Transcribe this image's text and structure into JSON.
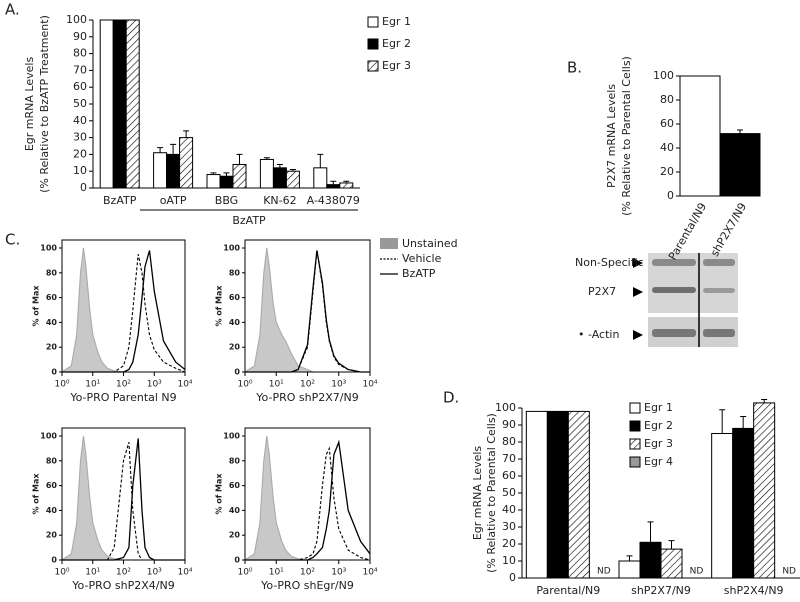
{
  "chart_data": [
    {
      "type": "bar",
      "panel": "A.",
      "ylabel": [
        "Egr mRNA Levels",
        "(% Relative to BzATP Treatment)"
      ],
      "categories": [
        "BzATP",
        "oATP",
        "BBG",
        "KN-62",
        "A-438079"
      ],
      "group_label": "BzATP",
      "series": [
        {
          "name": "Egr 1",
          "color": "#ffffff",
          "values": [
            100,
            21,
            8,
            17,
            12
          ],
          "errors": [
            0,
            3,
            1,
            1,
            8
          ]
        },
        {
          "name": "Egr 2",
          "color": "#000000",
          "values": [
            100,
            20,
            7,
            12,
            2
          ],
          "errors": [
            0,
            6,
            2,
            2,
            2
          ]
        },
        {
          "name": "Egr 3",
          "color": "#ffffff",
          "hatch": true,
          "values": [
            100,
            30,
            14,
            10,
            3
          ],
          "errors": [
            0,
            4,
            6,
            1,
            1
          ]
        }
      ],
      "ylim": [
        0,
        100
      ],
      "yticks": [
        0,
        10,
        20,
        30,
        40,
        50,
        60,
        70,
        80,
        90,
        100
      ]
    },
    {
      "type": "bar",
      "panel": "B.",
      "ylabel": [
        "P2X7 mRNA Levels",
        "(% Relative to Parental Cells)"
      ],
      "categories": [
        "Parental/N9",
        "shP2X7/N9"
      ],
      "values": [
        100,
        52
      ],
      "errors": [
        0,
        3
      ],
      "colors": [
        "#ffffff",
        "#000000"
      ],
      "ylim": [
        0,
        100
      ],
      "yticks": [
        0,
        20,
        40,
        60,
        80,
        100
      ]
    },
    {
      "type": "flow",
      "panel": "C.",
      "xlabel": "Yo-PRO Parental N9",
      "ylabel": "% of Max",
      "xscale": "log",
      "x": [
        1,
        2,
        3,
        4,
        5,
        6,
        8,
        10,
        15,
        20,
        30,
        50,
        100,
        150,
        200,
        300,
        400,
        500,
        700,
        1000,
        2000,
        5000,
        10000
      ],
      "series": [
        {
          "name": "Unstained",
          "color": "#c8c8c8",
          "style": "fill",
          "values": [
            0,
            5,
            30,
            80,
            100,
            85,
            50,
            30,
            15,
            8,
            3,
            1,
            0,
            0,
            0,
            0,
            0,
            0,
            0,
            0,
            0,
            0,
            0
          ]
        },
        {
          "name": "Vehicle",
          "color": "#000000",
          "style": "dashed",
          "values": [
            0,
            0,
            0,
            0,
            0,
            0,
            0,
            0,
            0,
            0,
            0,
            0,
            5,
            20,
            50,
            95,
            80,
            55,
            30,
            18,
            8,
            3,
            0
          ]
        },
        {
          "name": "BzATP",
          "color": "#000000",
          "style": "solid",
          "values": [
            0,
            0,
            0,
            0,
            0,
            0,
            0,
            0,
            0,
            0,
            0,
            0,
            0,
            2,
            8,
            30,
            60,
            85,
            98,
            65,
            25,
            8,
            2
          ]
        }
      ],
      "xlim": [
        1,
        10000
      ],
      "xticks": [
        {
          "value": 1,
          "label": "10⁰"
        },
        {
          "value": 10,
          "label": "10¹"
        },
        {
          "value": 100,
          "label": "10²"
        },
        {
          "value": 1000,
          "label": "10³"
        },
        {
          "value": 10000,
          "label": "10⁴"
        }
      ],
      "ylim": [
        0,
        100
      ],
      "yticks": [
        0,
        20,
        40,
        60,
        80,
        100
      ]
    },
    {
      "type": "flow",
      "xlabel": "Yo-PRO shP2X7/N9",
      "ylabel": "% of Max",
      "xscale": "log",
      "x": [
        1,
        2,
        3,
        4,
        5,
        6,
        8,
        10,
        15,
        20,
        30,
        50,
        100,
        150,
        200,
        300,
        400,
        500,
        700,
        1000,
        2000,
        5000,
        10000
      ],
      "series": [
        {
          "name": "Unstained",
          "color": "#c8c8c8",
          "style": "fill",
          "values": [
            0,
            5,
            30,
            80,
            100,
            85,
            55,
            40,
            30,
            25,
            15,
            5,
            2,
            0,
            0,
            0,
            0,
            0,
            0,
            0,
            0,
            0,
            0
          ]
        },
        {
          "name": "Vehicle",
          "color": "#000000",
          "style": "dashed",
          "values": [
            0,
            0,
            0,
            0,
            0,
            0,
            0,
            0,
            0,
            0,
            0,
            2,
            20,
            65,
            98,
            70,
            40,
            25,
            12,
            6,
            2,
            0,
            0
          ]
        },
        {
          "name": "BzATP",
          "color": "#000000",
          "style": "solid",
          "values": [
            0,
            0,
            0,
            0,
            0,
            0,
            0,
            0,
            0,
            0,
            0,
            2,
            22,
            68,
            98,
            72,
            42,
            26,
            13,
            7,
            2,
            0,
            0
          ]
        }
      ],
      "xlim": [
        1,
        10000
      ],
      "xticks": [
        {
          "value": 1,
          "label": "10⁰"
        },
        {
          "value": 10,
          "label": "10¹"
        },
        {
          "value": 100,
          "label": "10²"
        },
        {
          "value": 1000,
          "label": "10³"
        },
        {
          "value": 10000,
          "label": "10⁴"
        }
      ],
      "ylim": [
        0,
        100
      ],
      "yticks": [
        0,
        20,
        40,
        60,
        80,
        100
      ]
    },
    {
      "type": "flow",
      "xlabel": "Yo-PRO shP2X4/N9",
      "ylabel": "% of Max",
      "xscale": "log",
      "x": [
        1,
        2,
        3,
        4,
        5,
        6,
        8,
        10,
        15,
        20,
        30,
        50,
        100,
        150,
        200,
        300,
        400,
        500,
        700,
        1000,
        2000,
        5000,
        10000
      ],
      "series": [
        {
          "name": "Unstained",
          "color": "#c8c8c8",
          "style": "fill",
          "values": [
            0,
            5,
            30,
            80,
            100,
            85,
            50,
            30,
            15,
            8,
            3,
            1,
            0,
            0,
            0,
            0,
            0,
            0,
            0,
            0,
            0,
            0,
            0
          ]
        },
        {
          "name": "Vehicle",
          "color": "#000000",
          "style": "dashed",
          "values": [
            0,
            0,
            0,
            0,
            0,
            0,
            0,
            0,
            0,
            0,
            0,
            10,
            80,
            95,
            40,
            5,
            0,
            0,
            0,
            0,
            0,
            0,
            0
          ]
        },
        {
          "name": "BzATP",
          "color": "#000000",
          "style": "solid",
          "values": [
            0,
            0,
            0,
            0,
            0,
            0,
            0,
            0,
            0,
            0,
            0,
            0,
            2,
            10,
            60,
            98,
            40,
            10,
            2,
            0,
            0,
            0,
            0
          ]
        }
      ],
      "xlim": [
        1,
        10000
      ],
      "xticks": [
        {
          "value": 1,
          "label": "10⁰"
        },
        {
          "value": 10,
          "label": "10¹"
        },
        {
          "value": 100,
          "label": "10²"
        },
        {
          "value": 1000,
          "label": "10³"
        },
        {
          "value": 10000,
          "label": "10⁴"
        }
      ],
      "ylim": [
        0,
        100
      ],
      "yticks": [
        0,
        20,
        40,
        60,
        80,
        100
      ]
    },
    {
      "type": "flow",
      "xlabel": "Yo-PRO shEgr/N9",
      "ylabel": "% of Max",
      "xscale": "log",
      "x": [
        1,
        2,
        3,
        4,
        5,
        6,
        8,
        10,
        15,
        20,
        30,
        50,
        100,
        150,
        200,
        300,
        400,
        500,
        700,
        1000,
        2000,
        5000,
        10000
      ],
      "series": [
        {
          "name": "Unstained",
          "color": "#c8c8c8",
          "style": "fill",
          "values": [
            0,
            5,
            30,
            80,
            100,
            85,
            50,
            30,
            15,
            8,
            3,
            1,
            0,
            0,
            0,
            0,
            0,
            0,
            0,
            0,
            0,
            0,
            0
          ]
        },
        {
          "name": "Vehicle",
          "color": "#000000",
          "style": "dashed",
          "values": [
            0,
            0,
            0,
            0,
            0,
            0,
            0,
            0,
            0,
            0,
            0,
            0,
            2,
            5,
            15,
            60,
            85,
            90,
            50,
            25,
            8,
            2,
            0
          ]
        },
        {
          "name": "BzATP",
          "color": "#000000",
          "style": "solid",
          "values": [
            0,
            0,
            0,
            0,
            0,
            0,
            0,
            0,
            0,
            0,
            0,
            0,
            0,
            2,
            5,
            10,
            25,
            40,
            85,
            95,
            40,
            15,
            5
          ]
        }
      ],
      "xlim": [
        1,
        10000
      ],
      "xticks": [
        {
          "value": 1,
          "label": "10⁰"
        },
        {
          "value": 10,
          "label": "10¹"
        },
        {
          "value": 100,
          "label": "10²"
        },
        {
          "value": 1000,
          "label": "10³"
        },
        {
          "value": 10000,
          "label": "10⁴"
        }
      ],
      "ylim": [
        0,
        100
      ],
      "yticks": [
        0,
        20,
        40,
        60,
        80,
        100
      ]
    },
    {
      "type": "bar",
      "panel": "D.",
      "ylabel": [
        "Egr mRNA Levels",
        "(% Relative to Parental Cells)"
      ],
      "categories": [
        "Parental/N9",
        "shP2X7/N9",
        "shP2X4/N9"
      ],
      "nd_labels": [
        "ND",
        "ND",
        "ND"
      ],
      "series": [
        {
          "name": "Egr 1",
          "color": "#ffffff",
          "values": [
            98,
            10,
            85
          ],
          "errors": [
            0,
            3,
            14
          ]
        },
        {
          "name": "Egr 2",
          "color": "#000000",
          "values": [
            98,
            21,
            88
          ],
          "errors": [
            0,
            12,
            7
          ]
        },
        {
          "name": "Egr 3",
          "color": "#ffffff",
          "hatch": true,
          "values": [
            98,
            17,
            103
          ],
          "errors": [
            0,
            5,
            2
          ]
        },
        {
          "name": "Egr 4",
          "color": "#999999",
          "values": [
            null,
            null,
            null
          ]
        }
      ],
      "ylim": [
        0,
        100
      ],
      "yticks": [
        0,
        10,
        20,
        30,
        40,
        50,
        60,
        70,
        80,
        90,
        100
      ]
    }
  ],
  "blot": {
    "labels": [
      "Non-Specific",
      "P2X7",
      "• -Actin"
    ]
  }
}
